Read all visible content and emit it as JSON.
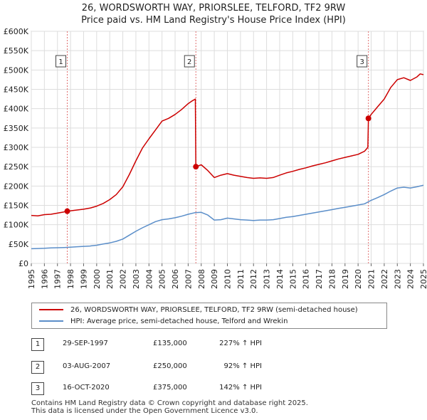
{
  "title": {
    "line1": "26, WORDSWORTH WAY, PRIORSLEE, TELFORD, TF2 9RW",
    "line2": "Price paid vs. HM Land Registry's House Price Index (HPI)"
  },
  "colors": {
    "price_line": "#cc0000",
    "hpi_line": "#5b8ec9",
    "marker_line": "#e07070",
    "grid": "#dddddd"
  },
  "chart_data": {
    "type": "line",
    "title": "26, WORDSWORTH WAY, PRIORSLEE, TELFORD, TF2 9RW",
    "subtitle": "Price paid vs. HM Land Registry's House Price Index (HPI)",
    "xlabel": "",
    "ylabel": "",
    "xlim": [
      1995,
      2025
    ],
    "ylim": [
      0,
      600000
    ],
    "grid": true,
    "y_ticks": [
      {
        "value": 0,
        "label": "£0"
      },
      {
        "value": 50000,
        "label": "£50K"
      },
      {
        "value": 100000,
        "label": "£100K"
      },
      {
        "value": 150000,
        "label": "£150K"
      },
      {
        "value": 200000,
        "label": "£200K"
      },
      {
        "value": 250000,
        "label": "£250K"
      },
      {
        "value": 300000,
        "label": "£300K"
      },
      {
        "value": 350000,
        "label": "£350K"
      },
      {
        "value": 400000,
        "label": "£400K"
      },
      {
        "value": 450000,
        "label": "£450K"
      },
      {
        "value": 500000,
        "label": "£500K"
      },
      {
        "value": 550000,
        "label": "£550K"
      },
      {
        "value": 600000,
        "label": "£600K"
      }
    ],
    "x_ticks": [
      "1995",
      "1996",
      "1997",
      "1998",
      "1999",
      "2000",
      "2001",
      "2002",
      "2003",
      "2004",
      "2005",
      "2006",
      "2007",
      "2008",
      "2009",
      "2010",
      "2011",
      "2012",
      "2013",
      "2014",
      "2015",
      "2016",
      "2017",
      "2018",
      "2019",
      "2020",
      "2021",
      "2022",
      "2023",
      "2024",
      "2025"
    ],
    "series": [
      {
        "name": "26, WORDSWORTH WAY, PRIORSLEE, TELFORD, TF2 9RW (semi-detached house)",
        "color": "#cc0000",
        "points": [
          [
            1995.0,
            124000
          ],
          [
            1995.5,
            123000
          ],
          [
            1996.0,
            126000
          ],
          [
            1996.5,
            127000
          ],
          [
            1997.0,
            130000
          ],
          [
            1997.5,
            133000
          ],
          [
            1997.75,
            135000
          ],
          [
            1998.0,
            136000
          ],
          [
            1998.5,
            138000
          ],
          [
            1999.0,
            140000
          ],
          [
            1999.5,
            143000
          ],
          [
            2000.0,
            148000
          ],
          [
            2000.5,
            155000
          ],
          [
            2001.0,
            165000
          ],
          [
            2001.5,
            178000
          ],
          [
            2002.0,
            198000
          ],
          [
            2002.5,
            230000
          ],
          [
            2003.0,
            265000
          ],
          [
            2003.5,
            298000
          ],
          [
            2004.0,
            322000
          ],
          [
            2004.5,
            345000
          ],
          [
            2005.0,
            368000
          ],
          [
            2005.5,
            375000
          ],
          [
            2006.0,
            385000
          ],
          [
            2006.5,
            398000
          ],
          [
            2007.0,
            413000
          ],
          [
            2007.3,
            420000
          ],
          [
            2007.55,
            425000
          ],
          [
            2007.59,
            250000
          ],
          [
            2008.0,
            255000
          ],
          [
            2008.5,
            240000
          ],
          [
            2009.0,
            222000
          ],
          [
            2009.5,
            228000
          ],
          [
            2010.0,
            232000
          ],
          [
            2010.5,
            228000
          ],
          [
            2011.0,
            225000
          ],
          [
            2011.5,
            222000
          ],
          [
            2012.0,
            220000
          ],
          [
            2012.5,
            221000
          ],
          [
            2013.0,
            220000
          ],
          [
            2013.5,
            222000
          ],
          [
            2014.0,
            228000
          ],
          [
            2014.5,
            234000
          ],
          [
            2015.0,
            238000
          ],
          [
            2015.5,
            243000
          ],
          [
            2016.0,
            247000
          ],
          [
            2016.5,
            252000
          ],
          [
            2017.0,
            256000
          ],
          [
            2017.5,
            260000
          ],
          [
            2018.0,
            265000
          ],
          [
            2018.5,
            270000
          ],
          [
            2019.0,
            274000
          ],
          [
            2019.5,
            278000
          ],
          [
            2020.0,
            282000
          ],
          [
            2020.5,
            290000
          ],
          [
            2020.75,
            300000
          ],
          [
            2020.79,
            375000
          ],
          [
            2021.0,
            385000
          ],
          [
            2021.5,
            405000
          ],
          [
            2022.0,
            425000
          ],
          [
            2022.5,
            455000
          ],
          [
            2023.0,
            475000
          ],
          [
            2023.5,
            480000
          ],
          [
            2024.0,
            473000
          ],
          [
            2024.5,
            482000
          ],
          [
            2024.75,
            490000
          ],
          [
            2025.0,
            488000
          ]
        ]
      },
      {
        "name": "HPI: Average price, semi-detached house, Telford and Wrekin",
        "color": "#5b8ec9",
        "points": [
          [
            1995.0,
            38000
          ],
          [
            1995.5,
            38500
          ],
          [
            1996.0,
            39000
          ],
          [
            1996.5,
            40000
          ],
          [
            1997.0,
            40500
          ],
          [
            1997.5,
            41000
          ],
          [
            1998.0,
            42000
          ],
          [
            1998.5,
            43000
          ],
          [
            1999.0,
            44000
          ],
          [
            1999.5,
            45000
          ],
          [
            2000.0,
            47000
          ],
          [
            2000.5,
            50000
          ],
          [
            2001.0,
            53000
          ],
          [
            2001.5,
            57000
          ],
          [
            2002.0,
            63000
          ],
          [
            2002.5,
            73000
          ],
          [
            2003.0,
            83000
          ],
          [
            2003.5,
            92000
          ],
          [
            2004.0,
            100000
          ],
          [
            2004.5,
            108000
          ],
          [
            2005.0,
            113000
          ],
          [
            2005.5,
            115000
          ],
          [
            2006.0,
            118000
          ],
          [
            2006.5,
            122000
          ],
          [
            2007.0,
            127000
          ],
          [
            2007.5,
            131000
          ],
          [
            2008.0,
            132000
          ],
          [
            2008.5,
            125000
          ],
          [
            2009.0,
            112000
          ],
          [
            2009.5,
            113000
          ],
          [
            2010.0,
            117000
          ],
          [
            2010.5,
            115000
          ],
          [
            2011.0,
            113000
          ],
          [
            2011.5,
            112000
          ],
          [
            2012.0,
            111000
          ],
          [
            2012.5,
            112000
          ],
          [
            2013.0,
            112000
          ],
          [
            2013.5,
            113000
          ],
          [
            2014.0,
            116000
          ],
          [
            2014.5,
            119000
          ],
          [
            2015.0,
            121000
          ],
          [
            2015.5,
            124000
          ],
          [
            2016.0,
            127000
          ],
          [
            2016.5,
            130000
          ],
          [
            2017.0,
            133000
          ],
          [
            2017.5,
            136000
          ],
          [
            2018.0,
            139000
          ],
          [
            2018.5,
            142000
          ],
          [
            2019.0,
            145000
          ],
          [
            2019.5,
            148000
          ],
          [
            2020.0,
            151000
          ],
          [
            2020.5,
            154000
          ],
          [
            2021.0,
            163000
          ],
          [
            2021.5,
            170000
          ],
          [
            2022.0,
            178000
          ],
          [
            2022.5,
            187000
          ],
          [
            2023.0,
            195000
          ],
          [
            2023.5,
            197000
          ],
          [
            2024.0,
            195000
          ],
          [
            2024.5,
            198000
          ],
          [
            2025.0,
            202000
          ]
        ]
      }
    ],
    "markers": [
      {
        "label": "1",
        "x": 1997.75,
        "value": 135000
      },
      {
        "label": "2",
        "x": 2007.59,
        "value": 250000
      },
      {
        "label": "3",
        "x": 2020.79,
        "value": 375000
      }
    ]
  },
  "legend": [
    {
      "label": "26, WORDSWORTH WAY, PRIORSLEE, TELFORD, TF2 9RW (semi-detached house)",
      "color": "#cc0000"
    },
    {
      "label": "HPI: Average price, semi-detached house, Telford and Wrekin",
      "color": "#5b8ec9"
    }
  ],
  "transactions": [
    {
      "num": "1",
      "date": "29-SEP-1997",
      "price": "£135,000",
      "hpi": "227% ↑ HPI"
    },
    {
      "num": "2",
      "date": "03-AUG-2007",
      "price": "£250,000",
      "hpi": "92% ↑ HPI"
    },
    {
      "num": "3",
      "date": "16-OCT-2020",
      "price": "£375,000",
      "hpi": "142% ↑ HPI"
    }
  ],
  "footer": {
    "line1": "Contains HM Land Registry data © Crown copyright and database right 2025.",
    "line2": "This data is licensed under the Open Government Licence v3.0."
  }
}
